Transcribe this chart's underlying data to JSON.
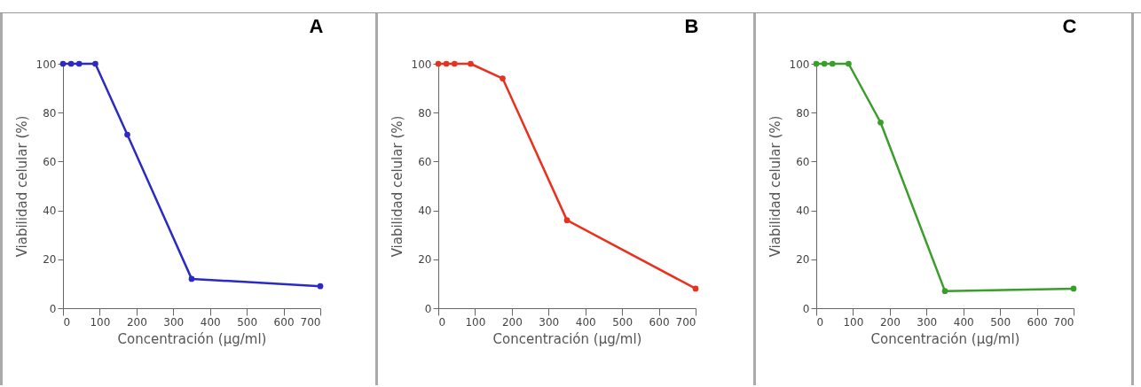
{
  "chart_data": [
    {
      "type": "line",
      "title": "A",
      "xlabel": "Concentración (µg/ml)",
      "ylabel": "Viabilidad celular (%)",
      "x": [
        0,
        22,
        44,
        88,
        175,
        350,
        700
      ],
      "series": [
        {
          "color": "#2b2bc4",
          "values": [
            100,
            100,
            100,
            100,
            71,
            12,
            9
          ]
        }
      ],
      "xlim": [
        0,
        700
      ],
      "ylim": [
        0,
        100
      ],
      "xticks": [
        0,
        100,
        200,
        300,
        400,
        500,
        600,
        700
      ],
      "yticks": [
        0,
        20,
        40,
        60,
        80,
        100
      ],
      "grid": false,
      "legend": false,
      "marker": "circle",
      "line_style": "solid"
    },
    {
      "type": "line",
      "title": "B",
      "xlabel": "Concentración (µg/ml)",
      "ylabel": "Viabilidad celular (%)",
      "x": [
        0,
        22,
        44,
        88,
        175,
        350,
        700
      ],
      "series": [
        {
          "color": "#e8321e",
          "values": [
            100,
            100,
            100,
            100,
            94,
            36,
            8
          ]
        }
      ],
      "xlim": [
        0,
        700
      ],
      "ylim": [
        0,
        100
      ],
      "xticks": [
        0,
        100,
        200,
        300,
        400,
        500,
        600,
        700
      ],
      "yticks": [
        0,
        20,
        40,
        60,
        80,
        100
      ],
      "grid": false,
      "legend": false,
      "marker": "circle",
      "line_style": "solid"
    },
    {
      "type": "line",
      "title": "C",
      "xlabel": "Concentración (µg/ml)",
      "ylabel": "Viabilidad celular (%)",
      "x": [
        0,
        22,
        44,
        88,
        175,
        350,
        700
      ],
      "series": [
        {
          "color": "#3a9e2a",
          "values": [
            100,
            100,
            100,
            100,
            76,
            7,
            8
          ]
        }
      ],
      "xlim": [
        0,
        700
      ],
      "ylim": [
        0,
        100
      ],
      "xticks": [
        0,
        100,
        200,
        300,
        400,
        500,
        600,
        700
      ],
      "yticks": [
        0,
        20,
        40,
        60,
        80,
        100
      ],
      "grid": false,
      "legend": false,
      "marker": "circle",
      "line_style": "solid"
    }
  ]
}
